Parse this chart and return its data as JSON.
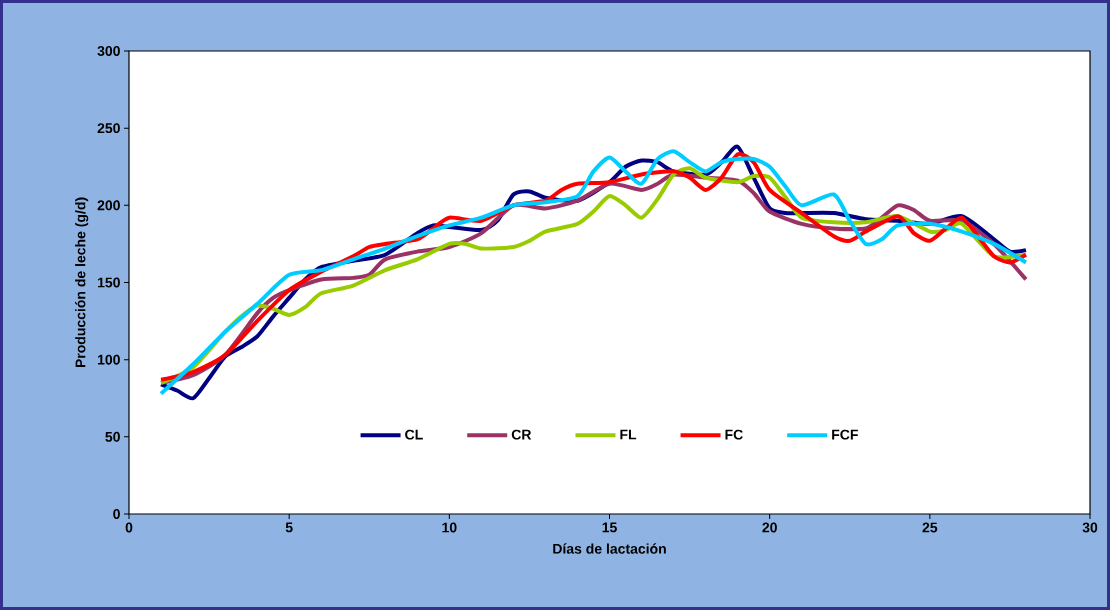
{
  "chart_data": {
    "type": "line",
    "xlabel": "Días de lactación",
    "ylabel": "Producción de leche (g/d)",
    "xlim": [
      0,
      30
    ],
    "xticks": [
      0,
      5,
      10,
      15,
      20,
      25,
      30
    ],
    "ylim": [
      0,
      300
    ],
    "yticks": [
      0,
      50,
      100,
      150,
      200,
      250,
      300
    ],
    "grid": false,
    "legend": "bottom",
    "marker": "none",
    "line_style": "solid",
    "series": [
      {
        "name": "CL",
        "color": "#000080",
        "x": [
          1,
          1.5,
          2,
          2.5,
          3,
          3.5,
          4,
          4.5,
          5,
          5.5,
          6,
          7,
          8,
          9,
          9.5,
          10,
          11,
          11.5,
          12,
          12.5,
          13,
          14,
          15,
          15.5,
          16,
          16.5,
          17,
          18,
          18.5,
          19,
          19.5,
          20,
          20.5,
          21,
          22,
          23,
          24,
          25,
          26,
          27,
          27.5,
          28
        ],
        "values": [
          84,
          80,
          75,
          88,
          102,
          108,
          115,
          128,
          140,
          152,
          160,
          164,
          168,
          182,
          187,
          186,
          184,
          190,
          207,
          209,
          205,
          203,
          215,
          225,
          229,
          228,
          222,
          220,
          228,
          238,
          218,
          198,
          195,
          195,
          195,
          191,
          190,
          188,
          193,
          178,
          170,
          171
        ]
      },
      {
        "name": "CR",
        "color": "#993366",
        "x": [
          1,
          2,
          3,
          4,
          4.5,
          5,
          6,
          7,
          7.5,
          8,
          9,
          10,
          11,
          12,
          13,
          14,
          15,
          16,
          16.5,
          17,
          18,
          19,
          19.5,
          20,
          21,
          22,
          23,
          23.5,
          24,
          24.5,
          25,
          26,
          27,
          28
        ],
        "values": [
          85,
          90,
          103,
          130,
          140,
          145,
          152,
          153,
          155,
          165,
          170,
          173,
          182,
          200,
          198,
          203,
          214,
          210,
          214,
          220,
          218,
          216,
          208,
          196,
          188,
          185,
          185,
          192,
          200,
          197,
          190,
          190,
          175,
          152
        ]
      },
      {
        "name": "FL",
        "color": "#99cc00",
        "x": [
          1,
          2,
          3,
          3.5,
          4,
          4.5,
          5,
          5.5,
          6,
          7,
          8,
          9,
          10,
          10.5,
          11,
          12,
          12.5,
          13,
          14,
          14.5,
          15,
          15.5,
          16,
          16.5,
          17,
          17.5,
          18,
          19,
          19.5,
          20,
          20.5,
          21,
          22,
          23,
          24,
          25,
          25.5,
          26,
          27,
          28
        ],
        "values": [
          85,
          95,
          118,
          128,
          135,
          133,
          129,
          134,
          143,
          148,
          158,
          165,
          175,
          175,
          172,
          173,
          177,
          183,
          188,
          196,
          206,
          200,
          192,
          204,
          220,
          224,
          218,
          215,
          219,
          218,
          205,
          192,
          189,
          189,
          193,
          183,
          184,
          188,
          167,
          168
        ]
      },
      {
        "name": "FC",
        "color": "#ff0000",
        "x": [
          1,
          2,
          3,
          4,
          5,
          6,
          7,
          7.5,
          8,
          9,
          9.5,
          10,
          11,
          12,
          13,
          13.5,
          14,
          15,
          16,
          17,
          17.5,
          18,
          18.5,
          19,
          19.5,
          20,
          21,
          22,
          22.5,
          23,
          24,
          24.5,
          25,
          25.5,
          26,
          26.5,
          27,
          27.5,
          28
        ],
        "values": [
          87,
          92,
          103,
          125,
          145,
          157,
          167,
          173,
          175,
          178,
          185,
          192,
          190,
          200,
          203,
          210,
          214,
          215,
          220,
          222,
          218,
          210,
          218,
          233,
          228,
          210,
          195,
          180,
          177,
          183,
          193,
          182,
          177,
          185,
          192,
          180,
          167,
          163,
          168
        ]
      },
      {
        "name": "FCF",
        "color": "#00ccff",
        "x": [
          1,
          2,
          3,
          4,
          5,
          6,
          7,
          8,
          9,
          10,
          11,
          12,
          13,
          14,
          14.5,
          15,
          15.5,
          16,
          16.5,
          17,
          17.5,
          18,
          18.5,
          19,
          19.5,
          20,
          20.5,
          21,
          22,
          22.5,
          23,
          23.5,
          24,
          25,
          26,
          27,
          28
        ],
        "values": [
          78,
          97,
          118,
          136,
          155,
          158,
          165,
          172,
          180,
          187,
          192,
          200,
          202,
          206,
          222,
          231,
          222,
          214,
          230,
          235,
          228,
          222,
          228,
          230,
          230,
          225,
          212,
          200,
          207,
          190,
          175,
          178,
          187,
          188,
          183,
          175,
          163
        ]
      }
    ]
  }
}
